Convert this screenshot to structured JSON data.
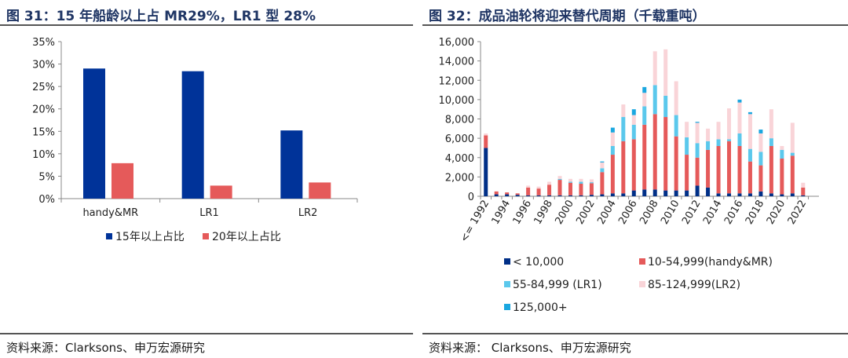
{
  "left": {
    "title": "图 31：15 年船龄以上占 MR29%，LR1 型 28%",
    "source": "资料来源：Clarksons、申万宏源研究"
  },
  "right": {
    "title": "图 32：成品油轮将迎来替代周期（千载重吨）",
    "source": "资料来源： Clarksons、申万宏源研究"
  },
  "chart_data": [
    {
      "type": "bar",
      "title": "15 年船龄以上占 MR29%，LR1 型 28%",
      "categories": [
        "handy&MR",
        "LR1",
        "LR2"
      ],
      "series": [
        {
          "name": "15年以上占比",
          "color": "#003399",
          "values": [
            29,
            28.4,
            15.2
          ]
        },
        {
          "name": "20年以上占比",
          "color": "#e55a5a",
          "values": [
            7.9,
            2.9,
            3.6
          ]
        }
      ],
      "ylim": [
        0,
        35
      ],
      "yticks": [
        0,
        5,
        10,
        15,
        20,
        25,
        30,
        35
      ],
      "ytick_labels": [
        "0%",
        "5%",
        "10%",
        "15%",
        "20%",
        "25%",
        "30%",
        "35%"
      ],
      "legend": "bottom"
    },
    {
      "type": "stacked-bar",
      "title": "成品油轮将迎来替代周期（千载重吨）",
      "categories": [
        "<= 1992",
        "1993",
        "1994",
        "1995",
        "1996",
        "1997",
        "1998",
        "1999",
        "2000",
        "2001",
        "2002",
        "2003",
        "2004",
        "2005",
        "2006",
        "2007",
        "2008",
        "2009",
        "2010",
        "2011",
        "2012",
        "2013",
        "2014",
        "2015",
        "2016",
        "2017",
        "2018",
        "2019",
        "2020",
        "2021",
        "2022",
        "2023"
      ],
      "xtick_labels": [
        "<= 1992",
        "",
        "1994",
        "",
        "1996",
        "",
        "1998",
        "",
        "2000",
        "",
        "2002",
        "",
        "2004",
        "",
        "2006",
        "",
        "2008",
        "",
        "2010",
        "",
        "2012",
        "",
        "2014",
        "",
        "2016",
        "",
        "2018",
        "",
        "2020",
        "",
        "2022",
        ""
      ],
      "series": [
        {
          "name": "< 10,000",
          "color": "#002f87",
          "values": [
            5000,
            200,
            200,
            150,
            100,
            100,
            100,
            100,
            100,
            100,
            150,
            200,
            300,
            300,
            600,
            700,
            700,
            600,
            600,
            600,
            1100,
            900,
            300,
            300,
            300,
            300,
            500,
            300,
            200,
            300,
            100,
            0
          ]
        },
        {
          "name": "10-54,999(handy&MR)",
          "color": "#e55a5a",
          "values": [
            1300,
            300,
            200,
            150,
            800,
            700,
            1100,
            1600,
            1300,
            1200,
            1200,
            2300,
            4000,
            5400,
            5300,
            6700,
            7800,
            7600,
            5600,
            3700,
            2900,
            3900,
            4900,
            5400,
            4900,
            3300,
            2700,
            4900,
            3700,
            3900,
            800,
            0
          ]
        },
        {
          "name": "55-84,999 (LR1)",
          "color": "#5bc8ec",
          "values": [
            0,
            0,
            0,
            0,
            0,
            0,
            0,
            100,
            100,
            200,
            100,
            400,
            900,
            2500,
            1500,
            1900,
            3000,
            2200,
            2200,
            1800,
            1500,
            900,
            700,
            200,
            1300,
            1300,
            1400,
            800,
            900,
            300,
            0,
            0
          ]
        },
        {
          "name": "85-124,999(LR2)",
          "color": "#f9d4d8",
          "values": [
            200,
            0,
            0,
            0,
            200,
            200,
            300,
            300,
            300,
            300,
            300,
            600,
            1400,
            1300,
            1000,
            1400,
            3500,
            4800,
            3500,
            1600,
            2100,
            1300,
            1800,
            3200,
            3200,
            3600,
            1900,
            3000,
            400,
            3100,
            500,
            0
          ]
        },
        {
          "name": "125,000+",
          "color": "#1aa7e0",
          "values": [
            0,
            0,
            0,
            0,
            0,
            0,
            0,
            0,
            0,
            0,
            0,
            100,
            500,
            0,
            600,
            600,
            0,
            0,
            0,
            0,
            100,
            0,
            0,
            0,
            300,
            200,
            400,
            0,
            0,
            0,
            0,
            0
          ]
        }
      ],
      "ylim": [
        0,
        16000
      ],
      "yticks": [
        0,
        2000,
        4000,
        6000,
        8000,
        10000,
        12000,
        14000,
        16000
      ],
      "ytick_labels": [
        "0",
        "2,000",
        "4,000",
        "6,000",
        "8,000",
        "10,000",
        "12,000",
        "14,000",
        "16,000"
      ],
      "legend": "bottom"
    }
  ]
}
